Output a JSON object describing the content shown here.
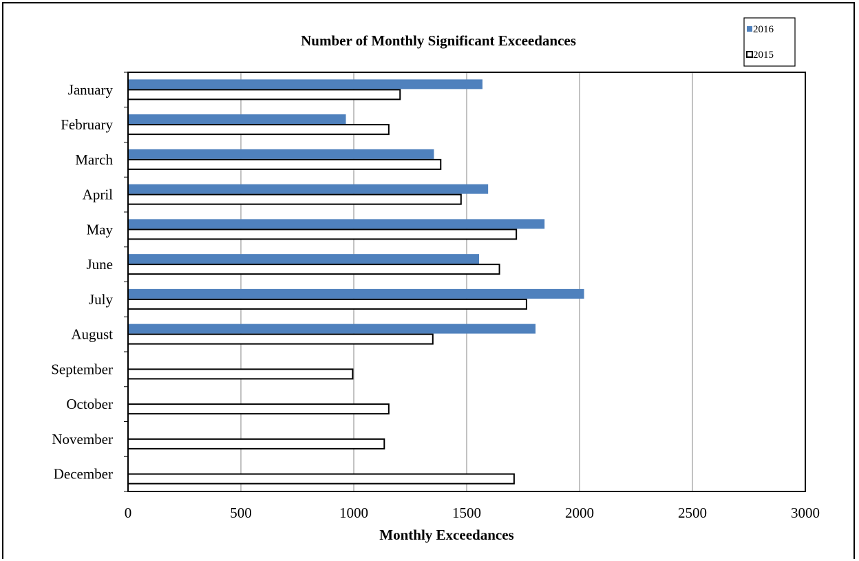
{
  "chart_data": {
    "type": "bar",
    "orientation": "horizontal",
    "title": "Number of Monthly Significant Exceedances",
    "xlabel": "Monthly Exceedances",
    "ylabel": "",
    "xlim": [
      0,
      3000
    ],
    "x_ticks": [
      "0",
      "500",
      "1000",
      "1500",
      "2000",
      "2500",
      "3000"
    ],
    "grid": "vertical major gridlines",
    "legend_position": "top-right",
    "categories": [
      "January",
      "February",
      "March",
      "April",
      "May",
      "June",
      "July",
      "August",
      "September",
      "October",
      "November",
      "December"
    ],
    "series": [
      {
        "name": "2016",
        "color": "#4F81BD",
        "style": "filled",
        "values": [
          1570,
          965,
          1355,
          1595,
          1845,
          1555,
          2020,
          1805,
          null,
          null,
          null,
          null
        ]
      },
      {
        "name": "2015",
        "color": "#FFFFFF",
        "style": "outlined",
        "values": [
          1205,
          1155,
          1385,
          1475,
          1720,
          1645,
          1765,
          1350,
          995,
          1155,
          1135,
          1710
        ]
      }
    ]
  }
}
